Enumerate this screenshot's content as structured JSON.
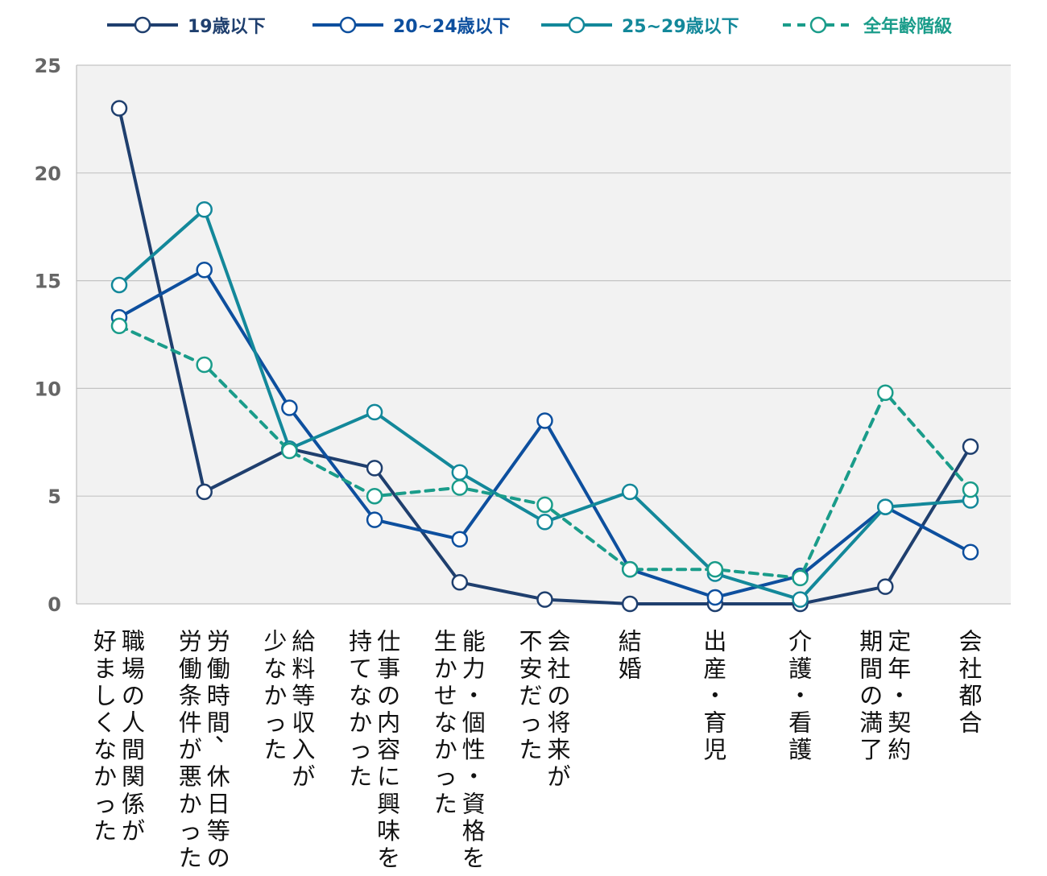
{
  "chart_data": {
    "type": "line",
    "title": "",
    "xlabel": "",
    "ylabel": "",
    "ylim": [
      0,
      25
    ],
    "yticks": [
      0,
      5,
      10,
      15,
      20,
      25
    ],
    "grid": true,
    "legend_position": "top",
    "categories": [
      [
        "職場の人間関係が",
        "好ましくなかった"
      ],
      [
        "労働時間、休日等の",
        "労働条件が悪かった"
      ],
      [
        "給料等収入が",
        "少なかった"
      ],
      [
        "仕事の内容に興味を",
        "持てなかった"
      ],
      [
        "能力・個性・資格を",
        "生かせなかった"
      ],
      [
        "会社の将来が",
        "不安だった"
      ],
      [
        "結婚"
      ],
      [
        "出産・育児"
      ],
      [
        "介護・看護"
      ],
      [
        "定年・契約",
        "期間の満了"
      ],
      [
        "会社都合"
      ]
    ],
    "series": [
      {
        "name": "19歳以下",
        "color": "#1f3f6e",
        "dashed": false,
        "values": [
          23.0,
          5.2,
          7.2,
          6.3,
          1.0,
          0.2,
          0.0,
          0.0,
          0.0,
          0.8,
          7.3
        ]
      },
      {
        "name": "20~24歳以下",
        "color": "#0d4f9e",
        "dashed": false,
        "values": [
          13.3,
          15.5,
          9.1,
          3.9,
          3.0,
          8.5,
          1.6,
          0.3,
          1.3,
          4.5,
          2.4
        ]
      },
      {
        "name": "25~29歳以下",
        "color": "#13889a",
        "dashed": false,
        "values": [
          14.8,
          18.3,
          7.2,
          8.9,
          6.1,
          3.8,
          5.2,
          1.4,
          0.2,
          4.5,
          4.8
        ]
      },
      {
        "name": "全年齢階級",
        "color": "#1a9c8a",
        "dashed": true,
        "values": [
          12.9,
          11.1,
          7.1,
          5.0,
          5.4,
          4.6,
          1.6,
          1.6,
          1.2,
          9.8,
          5.3
        ]
      }
    ]
  }
}
